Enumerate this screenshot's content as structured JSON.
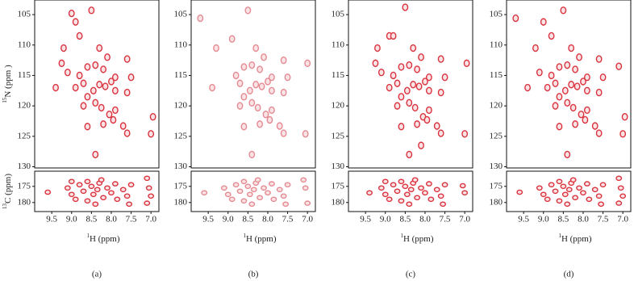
{
  "chart_data": [
    {
      "type": "scatter",
      "ylabel": {
        "sup": "15",
        "text": "N (ppm )"
      },
      "color": "#d9333f",
      "xlim": [
        9.93,
        6.8
      ],
      "ylim": [
        130.2,
        102.6
      ],
      "yticks": [
        105,
        110,
        115,
        120,
        125,
        130
      ],
      "x": [
        9.0,
        8.5,
        8.9,
        8.8,
        9.2,
        8.3,
        8.1,
        7.6,
        8.4,
        8.6,
        8.2,
        9.1,
        8.8,
        7.9,
        8.0,
        7.5,
        8.7,
        8.3,
        8.15,
        8.45,
        8.9,
        7.9,
        7.6,
        8.6,
        8.4,
        8.25,
        8.7,
        7.9,
        8.05,
        7.95,
        8.2,
        8.6,
        7.7,
        7.6,
        6.95,
        7.0,
        8.4,
        9.4,
        9.25
      ],
      "y": [
        104.8,
        104.3,
        106.2,
        108.5,
        110.5,
        110.5,
        112.0,
        112.3,
        113.3,
        113.6,
        114.0,
        114.5,
        115.0,
        115.3,
        116.0,
        115.3,
        116.3,
        116.5,
        116.8,
        117.5,
        117.0,
        117.5,
        117.8,
        118.5,
        119.5,
        120.3,
        120.0,
        120.7,
        121.4,
        122.3,
        123.0,
        123.4,
        123.3,
        124.5,
        121.8,
        124.6,
        128.0,
        117.0,
        113.0
      ]
    },
    {
      "type": "scatter",
      "ylabel": {
        "sup": "13",
        "text": "C (ppm)"
      },
      "xlabel": {
        "sup": "1",
        "text": "H  (ppm)"
      },
      "caption": "(a)",
      "color": "#d9333f",
      "xlim": [
        9.93,
        6.8
      ],
      "ylim": [
        182.8,
        170.3
      ],
      "yticks": [
        175,
        180
      ],
      "xticks": [
        9.5,
        {
          "value": 9,
          "label": "9.0"
        },
        8.5,
        {
          "value": 8,
          "label": "8.0"
        },
        7.5,
        {
          "value": 7,
          "label": "7.0"
        }
      ],
      "x": [
        9.6,
        9.1,
        9.0,
        8.8,
        8.7,
        8.6,
        8.5,
        8.45,
        8.35,
        8.3,
        8.2,
        8.1,
        8.0,
        7.9,
        7.85,
        7.7,
        7.6,
        7.5,
        7.55,
        8.6,
        8.4,
        8.9,
        7.1,
        7.05,
        7.0,
        7.1,
        8.25,
        9.0
      ],
      "y": [
        176.8,
        175.5,
        177.5,
        174.5,
        176.5,
        173.5,
        175.0,
        177.5,
        176.0,
        174.0,
        178.5,
        175.5,
        177.0,
        174.2,
        179.0,
        176.0,
        178.0,
        174.5,
        180.5,
        179.5,
        180.5,
        179.0,
        172.5,
        175.5,
        178.0,
        180.2,
        173.0,
        173.5
      ]
    },
    {
      "type": "scatter",
      "color": "#e58a92",
      "xlim": [
        9.93,
        6.8
      ],
      "ylim": [
        130.2,
        102.6
      ],
      "yticks": [
        105,
        110,
        115,
        120,
        125,
        130
      ],
      "x": [
        9.7,
        8.5,
        8.9,
        9.3,
        8.3,
        8.1,
        7.6,
        8.4,
        8.6,
        8.2,
        8.8,
        7.9,
        8.0,
        7.5,
        8.7,
        8.3,
        8.15,
        8.45,
        7.9,
        7.6,
        8.6,
        8.4,
        8.25,
        8.7,
        7.9,
        8.05,
        7.95,
        8.2,
        8.6,
        7.7,
        7.6,
        7.0,
        7.05,
        8.4,
        9.4
      ],
      "y": [
        105.6,
        104.3,
        109.0,
        110.5,
        110.5,
        112.0,
        112.5,
        113.3,
        113.6,
        114.0,
        115.0,
        115.3,
        116.0,
        115.3,
        116.3,
        116.5,
        116.8,
        117.5,
        117.5,
        117.8,
        118.5,
        119.5,
        120.3,
        120.0,
        120.7,
        121.4,
        122.3,
        123.0,
        123.4,
        123.3,
        124.5,
        113.0,
        124.6,
        128.0,
        117.0
      ]
    },
    {
      "type": "scatter",
      "xlabel": {
        "sup": "1",
        "text": "H  (ppm)"
      },
      "caption": "(b)",
      "color": "#e58a92",
      "xlim": [
        9.93,
        6.8
      ],
      "ylim": [
        182.8,
        170.3
      ],
      "yticks": [
        175,
        180
      ],
      "xticks": [
        9.5,
        {
          "value": 9,
          "label": "9.0"
        },
        8.5,
        {
          "value": 8,
          "label": "8.0"
        },
        7.5,
        {
          "value": 7,
          "label": "7.0"
        }
      ],
      "x": [
        9.6,
        9.1,
        9.0,
        8.8,
        8.7,
        8.6,
        8.5,
        8.45,
        8.35,
        8.3,
        8.2,
        8.1,
        8.0,
        7.9,
        7.85,
        7.7,
        7.6,
        7.5,
        7.55,
        8.6,
        8.4,
        8.9,
        7.1,
        7.05,
        7.0,
        8.25
      ],
      "y": [
        177.0,
        175.5,
        177.5,
        174.5,
        176.5,
        173.5,
        175.0,
        177.5,
        176.0,
        174.0,
        178.5,
        175.5,
        177.0,
        174.2,
        179.0,
        176.0,
        178.0,
        174.5,
        180.5,
        179.5,
        180.5,
        179.0,
        173.0,
        175.5,
        180.2,
        173.0
      ]
    },
    {
      "type": "scatter",
      "color": "#d9333f",
      "xlim": [
        9.93,
        6.8
      ],
      "ylim": [
        130.2,
        102.6
      ],
      "yticks": [
        105,
        110,
        115,
        120,
        125,
        130
      ],
      "x": [
        8.5,
        8.9,
        8.8,
        9.2,
        8.3,
        8.1,
        7.6,
        8.4,
        8.6,
        8.2,
        9.1,
        8.8,
        7.9,
        8.0,
        7.5,
        8.7,
        8.3,
        8.15,
        8.45,
        8.9,
        7.9,
        7.6,
        8.6,
        8.4,
        8.25,
        8.7,
        7.9,
        8.05,
        7.95,
        8.2,
        8.6,
        7.7,
        7.6,
        6.95,
        7.0,
        8.4,
        8.1,
        9.25
      ],
      "y": [
        103.8,
        108.5,
        108.5,
        110.5,
        110.5,
        112.0,
        112.3,
        113.3,
        113.6,
        114.0,
        114.5,
        115.0,
        115.3,
        116.0,
        115.3,
        116.3,
        116.5,
        116.8,
        117.5,
        117.0,
        117.5,
        117.8,
        118.5,
        119.5,
        120.3,
        120.0,
        120.7,
        121.8,
        122.3,
        123.0,
        123.4,
        123.3,
        124.5,
        113.0,
        124.6,
        128.0,
        126.5,
        113.0
      ]
    },
    {
      "type": "scatter",
      "xlabel": {
        "sup": "1",
        "text": "H  (ppm)"
      },
      "caption": "(c)",
      "color": "#d9333f",
      "xlim": [
        9.93,
        6.8
      ],
      "ylim": [
        182.8,
        170.3
      ],
      "yticks": [
        175,
        180
      ],
      "xticks": [
        9.5,
        {
          "value": 9,
          "label": "9.0"
        },
        8.5,
        {
          "value": 8,
          "label": "8.0"
        },
        7.5,
        {
          "value": 7,
          "label": "7.0"
        }
      ],
      "x": [
        9.4,
        9.1,
        9.0,
        8.8,
        8.7,
        8.6,
        8.5,
        8.45,
        8.35,
        8.3,
        8.2,
        8.1,
        8.0,
        7.9,
        7.85,
        7.7,
        7.6,
        7.5,
        7.55,
        8.6,
        8.4,
        8.9,
        7.05,
        7.0,
        8.25,
        9.0
      ],
      "y": [
        177.0,
        175.5,
        177.5,
        174.5,
        176.5,
        173.5,
        175.0,
        177.5,
        176.0,
        174.0,
        178.5,
        175.5,
        177.0,
        174.2,
        179.0,
        176.0,
        178.0,
        174.5,
        180.5,
        179.5,
        180.5,
        179.0,
        174.8,
        177.0,
        173.0,
        173.5
      ]
    },
    {
      "type": "scatter",
      "color": "#d9333f",
      "xlim": [
        9.93,
        6.8
      ],
      "ylim": [
        130.2,
        102.6
      ],
      "yticks": [
        105,
        110,
        115,
        120,
        125,
        130
      ],
      "x": [
        9.7,
        8.5,
        9.0,
        8.8,
        9.2,
        8.3,
        8.1,
        7.6,
        8.4,
        8.6,
        8.2,
        9.1,
        8.8,
        7.9,
        8.0,
        7.5,
        8.7,
        8.3,
        8.15,
        8.45,
        8.9,
        7.9,
        7.6,
        8.6,
        8.4,
        8.25,
        8.7,
        7.9,
        8.05,
        7.95,
        8.2,
        8.6,
        7.7,
        7.6,
        6.95,
        7.0,
        8.4,
        9.4,
        7.1
      ],
      "y": [
        105.6,
        104.3,
        106.2,
        108.5,
        110.5,
        110.5,
        112.0,
        112.3,
        113.3,
        113.6,
        114.0,
        114.5,
        115.0,
        115.3,
        116.0,
        115.3,
        116.3,
        116.5,
        116.8,
        117.5,
        117.0,
        117.5,
        117.8,
        118.5,
        119.5,
        120.3,
        120.0,
        120.7,
        121.4,
        122.3,
        123.0,
        123.4,
        123.3,
        124.5,
        121.8,
        124.6,
        128.0,
        117.0,
        113.5
      ]
    },
    {
      "type": "scatter",
      "xlabel": {
        "sup": "1",
        "text": "H  (ppm)"
      },
      "caption": "(d)",
      "color": "#d9333f",
      "xlim": [
        9.93,
        6.8
      ],
      "ylim": [
        182.8,
        170.3
      ],
      "yticks": [
        175,
        180
      ],
      "xticks": [
        9.5,
        {
          "value": 9,
          "label": "9.0"
        },
        8.5,
        {
          "value": 8,
          "label": "8.0"
        },
        7.5,
        {
          "value": 7,
          "label": "7.0"
        }
      ],
      "x": [
        9.6,
        9.1,
        9.0,
        8.8,
        8.7,
        8.6,
        8.5,
        8.45,
        8.35,
        8.3,
        8.2,
        8.1,
        8.0,
        7.9,
        7.85,
        7.7,
        7.6,
        7.5,
        7.55,
        8.6,
        8.4,
        8.9,
        7.1,
        7.05,
        7.0,
        7.1,
        8.25
      ],
      "y": [
        176.8,
        175.5,
        177.5,
        174.5,
        176.5,
        173.5,
        175.0,
        177.5,
        176.0,
        174.0,
        178.5,
        175.5,
        177.0,
        174.2,
        179.0,
        176.0,
        178.0,
        174.5,
        180.5,
        179.5,
        180.5,
        179.0,
        172.5,
        175.5,
        178.0,
        180.2,
        173.0
      ]
    }
  ]
}
